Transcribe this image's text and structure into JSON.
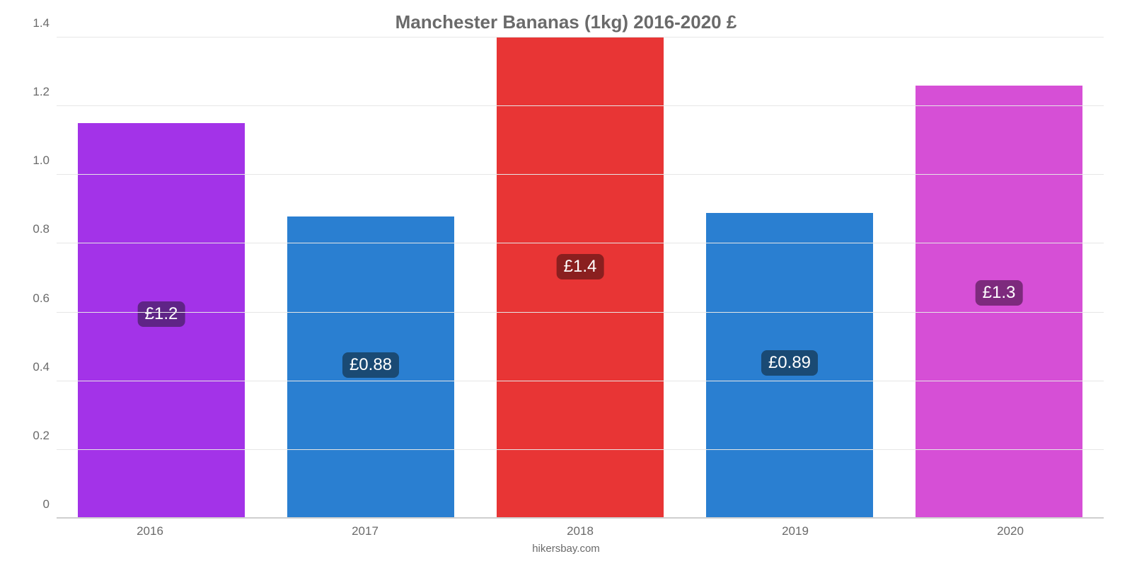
{
  "chart": {
    "type": "bar",
    "title": "Manchester Bananas (1kg) 2016-2020 £",
    "title_fontsize": 26,
    "title_color": "#6a6a6a",
    "background_color": "#ffffff",
    "grid_color": "#e6e6e6",
    "baseline_color": "#cfcfcf",
    "categories": [
      "2016",
      "2017",
      "2018",
      "2019",
      "2020"
    ],
    "values": [
      1.15,
      0.88,
      1.4,
      0.89,
      1.26
    ],
    "value_labels": [
      "£1.2",
      "£0.88",
      "£1.4",
      "£0.89",
      "£1.3"
    ],
    "bar_colors": [
      "#a333e8",
      "#2a7fd1",
      "#e83535",
      "#2a7fd1",
      "#d64fd6"
    ],
    "label_bg_colors": [
      "#5f2487",
      "#1a4a74",
      "#8a1f1f",
      "#1a4a74",
      "#7d2a7d"
    ],
    "ylim": [
      0,
      1.4
    ],
    "yticks": [
      0,
      0.2,
      0.4,
      0.6,
      0.8,
      1.0,
      1.2,
      1.4
    ],
    "ytick_labels": [
      "0",
      "0.2",
      "0.4",
      "0.6",
      "0.8",
      "1.0",
      "1.2",
      "1.4"
    ],
    "bar_width_percent": 80,
    "tick_fontsize": 17,
    "value_label_fontsize": 24,
    "credit": "hikersbay.com",
    "credit_fontsize": 15
  }
}
